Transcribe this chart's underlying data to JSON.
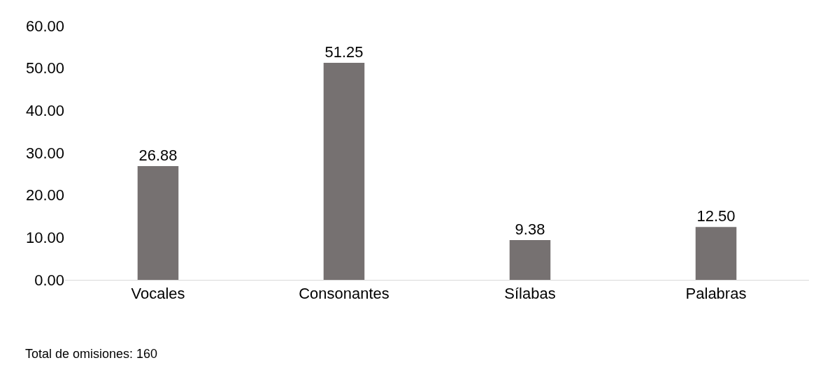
{
  "chart_data": {
    "type": "bar",
    "categories": [
      "Vocales",
      "Consonantes",
      "Sílabas",
      "Palabras"
    ],
    "values": [
      26.88,
      51.25,
      9.38,
      12.5
    ],
    "value_labels": [
      "26.88",
      "51.25",
      "9.38",
      "12.50"
    ],
    "color": "#767171",
    "ylim": [
      0,
      60
    ],
    "yticks": [
      {
        "value": 0,
        "label": "0.00"
      },
      {
        "value": 10,
        "label": "10.00"
      },
      {
        "value": 20,
        "label": "20.00"
      },
      {
        "value": 30,
        "label": "30.00"
      },
      {
        "value": 40,
        "label": "40.00"
      },
      {
        "value": 50,
        "label": "50.00"
      },
      {
        "value": 60,
        "label": "60.00"
      }
    ],
    "annotations": [
      "Total de omisiones: 160"
    ]
  }
}
